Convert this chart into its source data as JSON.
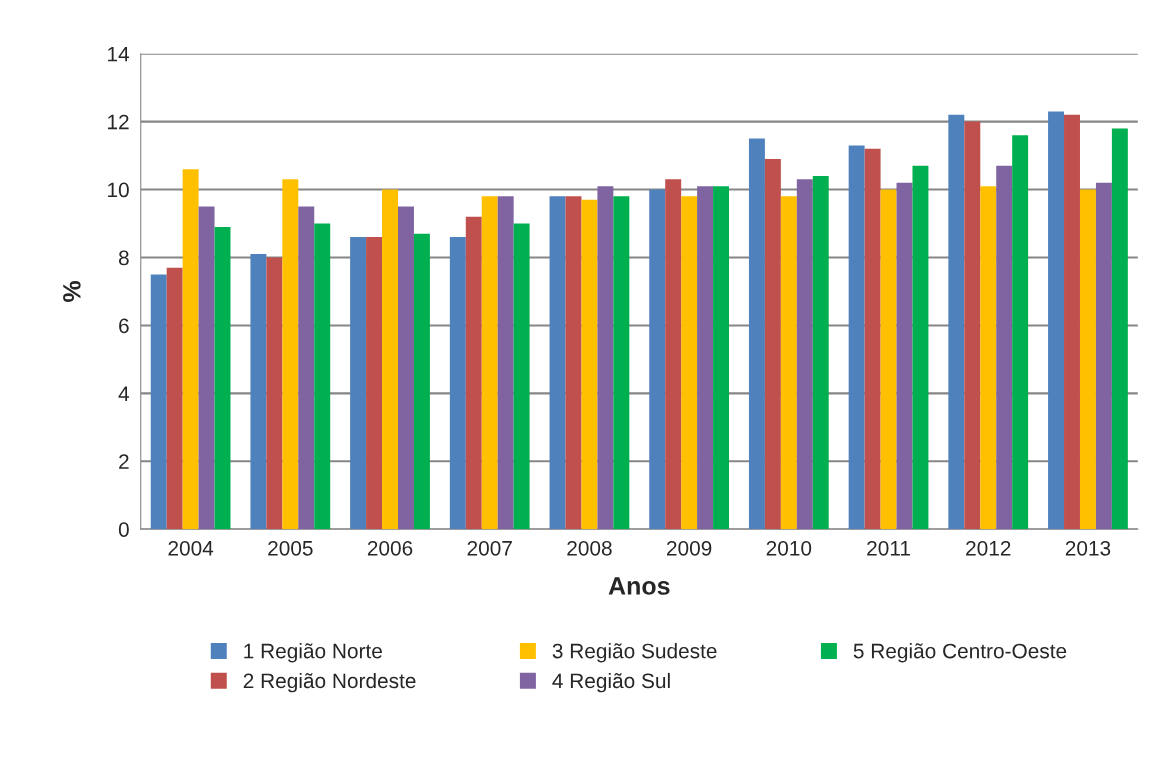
{
  "chart_data": {
    "type": "bar",
    "xlabel": "Anos",
    "ylabel": "%",
    "categories": [
      "2004",
      "2005",
      "2006",
      "2007",
      "2008",
      "2009",
      "2010",
      "2011",
      "2012",
      "2013"
    ],
    "series": [
      {
        "name": "1 Região Norte",
        "color": "#4f81bd",
        "values": [
          7.5,
          8.1,
          8.6,
          8.6,
          9.8,
          10.0,
          11.5,
          11.3,
          12.2,
          12.3
        ]
      },
      {
        "name": "2 Região Nordeste",
        "color": "#c0504d",
        "values": [
          7.7,
          8.0,
          8.6,
          9.2,
          9.8,
          10.3,
          10.9,
          11.2,
          12.0,
          12.2
        ]
      },
      {
        "name": "3 Região Sudeste",
        "color": "#ffc000",
        "values": [
          10.6,
          10.3,
          10.0,
          9.8,
          9.7,
          9.8,
          9.8,
          10.0,
          10.1,
          10.0
        ]
      },
      {
        "name": "4 Região Sul",
        "color": "#8064a2",
        "values": [
          9.5,
          9.5,
          9.5,
          9.8,
          10.1,
          10.1,
          10.3,
          10.2,
          10.7,
          10.2
        ]
      },
      {
        "name": "5 Região Centro-Oeste",
        "color": "#00b050",
        "values": [
          8.9,
          9.0,
          8.7,
          9.0,
          9.8,
          10.1,
          10.4,
          10.7,
          11.6,
          11.8
        ]
      }
    ],
    "ylim": [
      0,
      14
    ],
    "yticks": [
      0,
      2,
      4,
      6,
      8,
      10,
      12,
      14
    ],
    "grid": "y",
    "legend": "bottom"
  }
}
